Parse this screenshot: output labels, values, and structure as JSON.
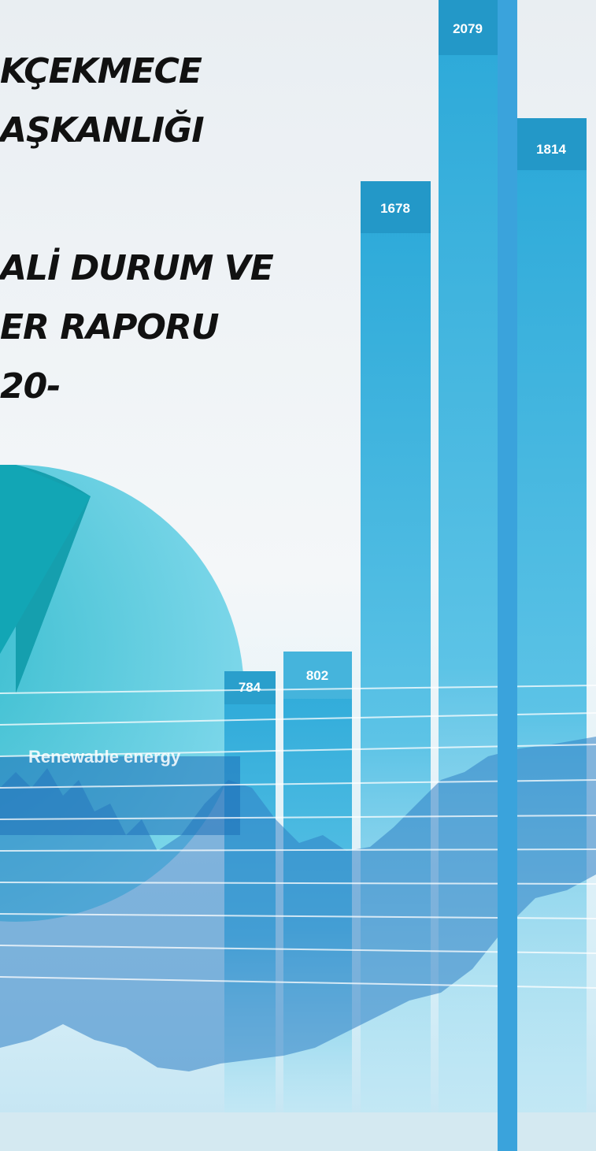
{
  "cover": {
    "title_lines": [
      "KÇEKMECE",
      "AŞKANLIĞI",
      "ALİ DURUM VE",
      "ER RAPORU",
      "20-"
    ],
    "bar_labels": [
      "784",
      "802",
      "1678",
      "2079",
      "1814"
    ],
    "pie_label": "Renewable energy"
  }
}
